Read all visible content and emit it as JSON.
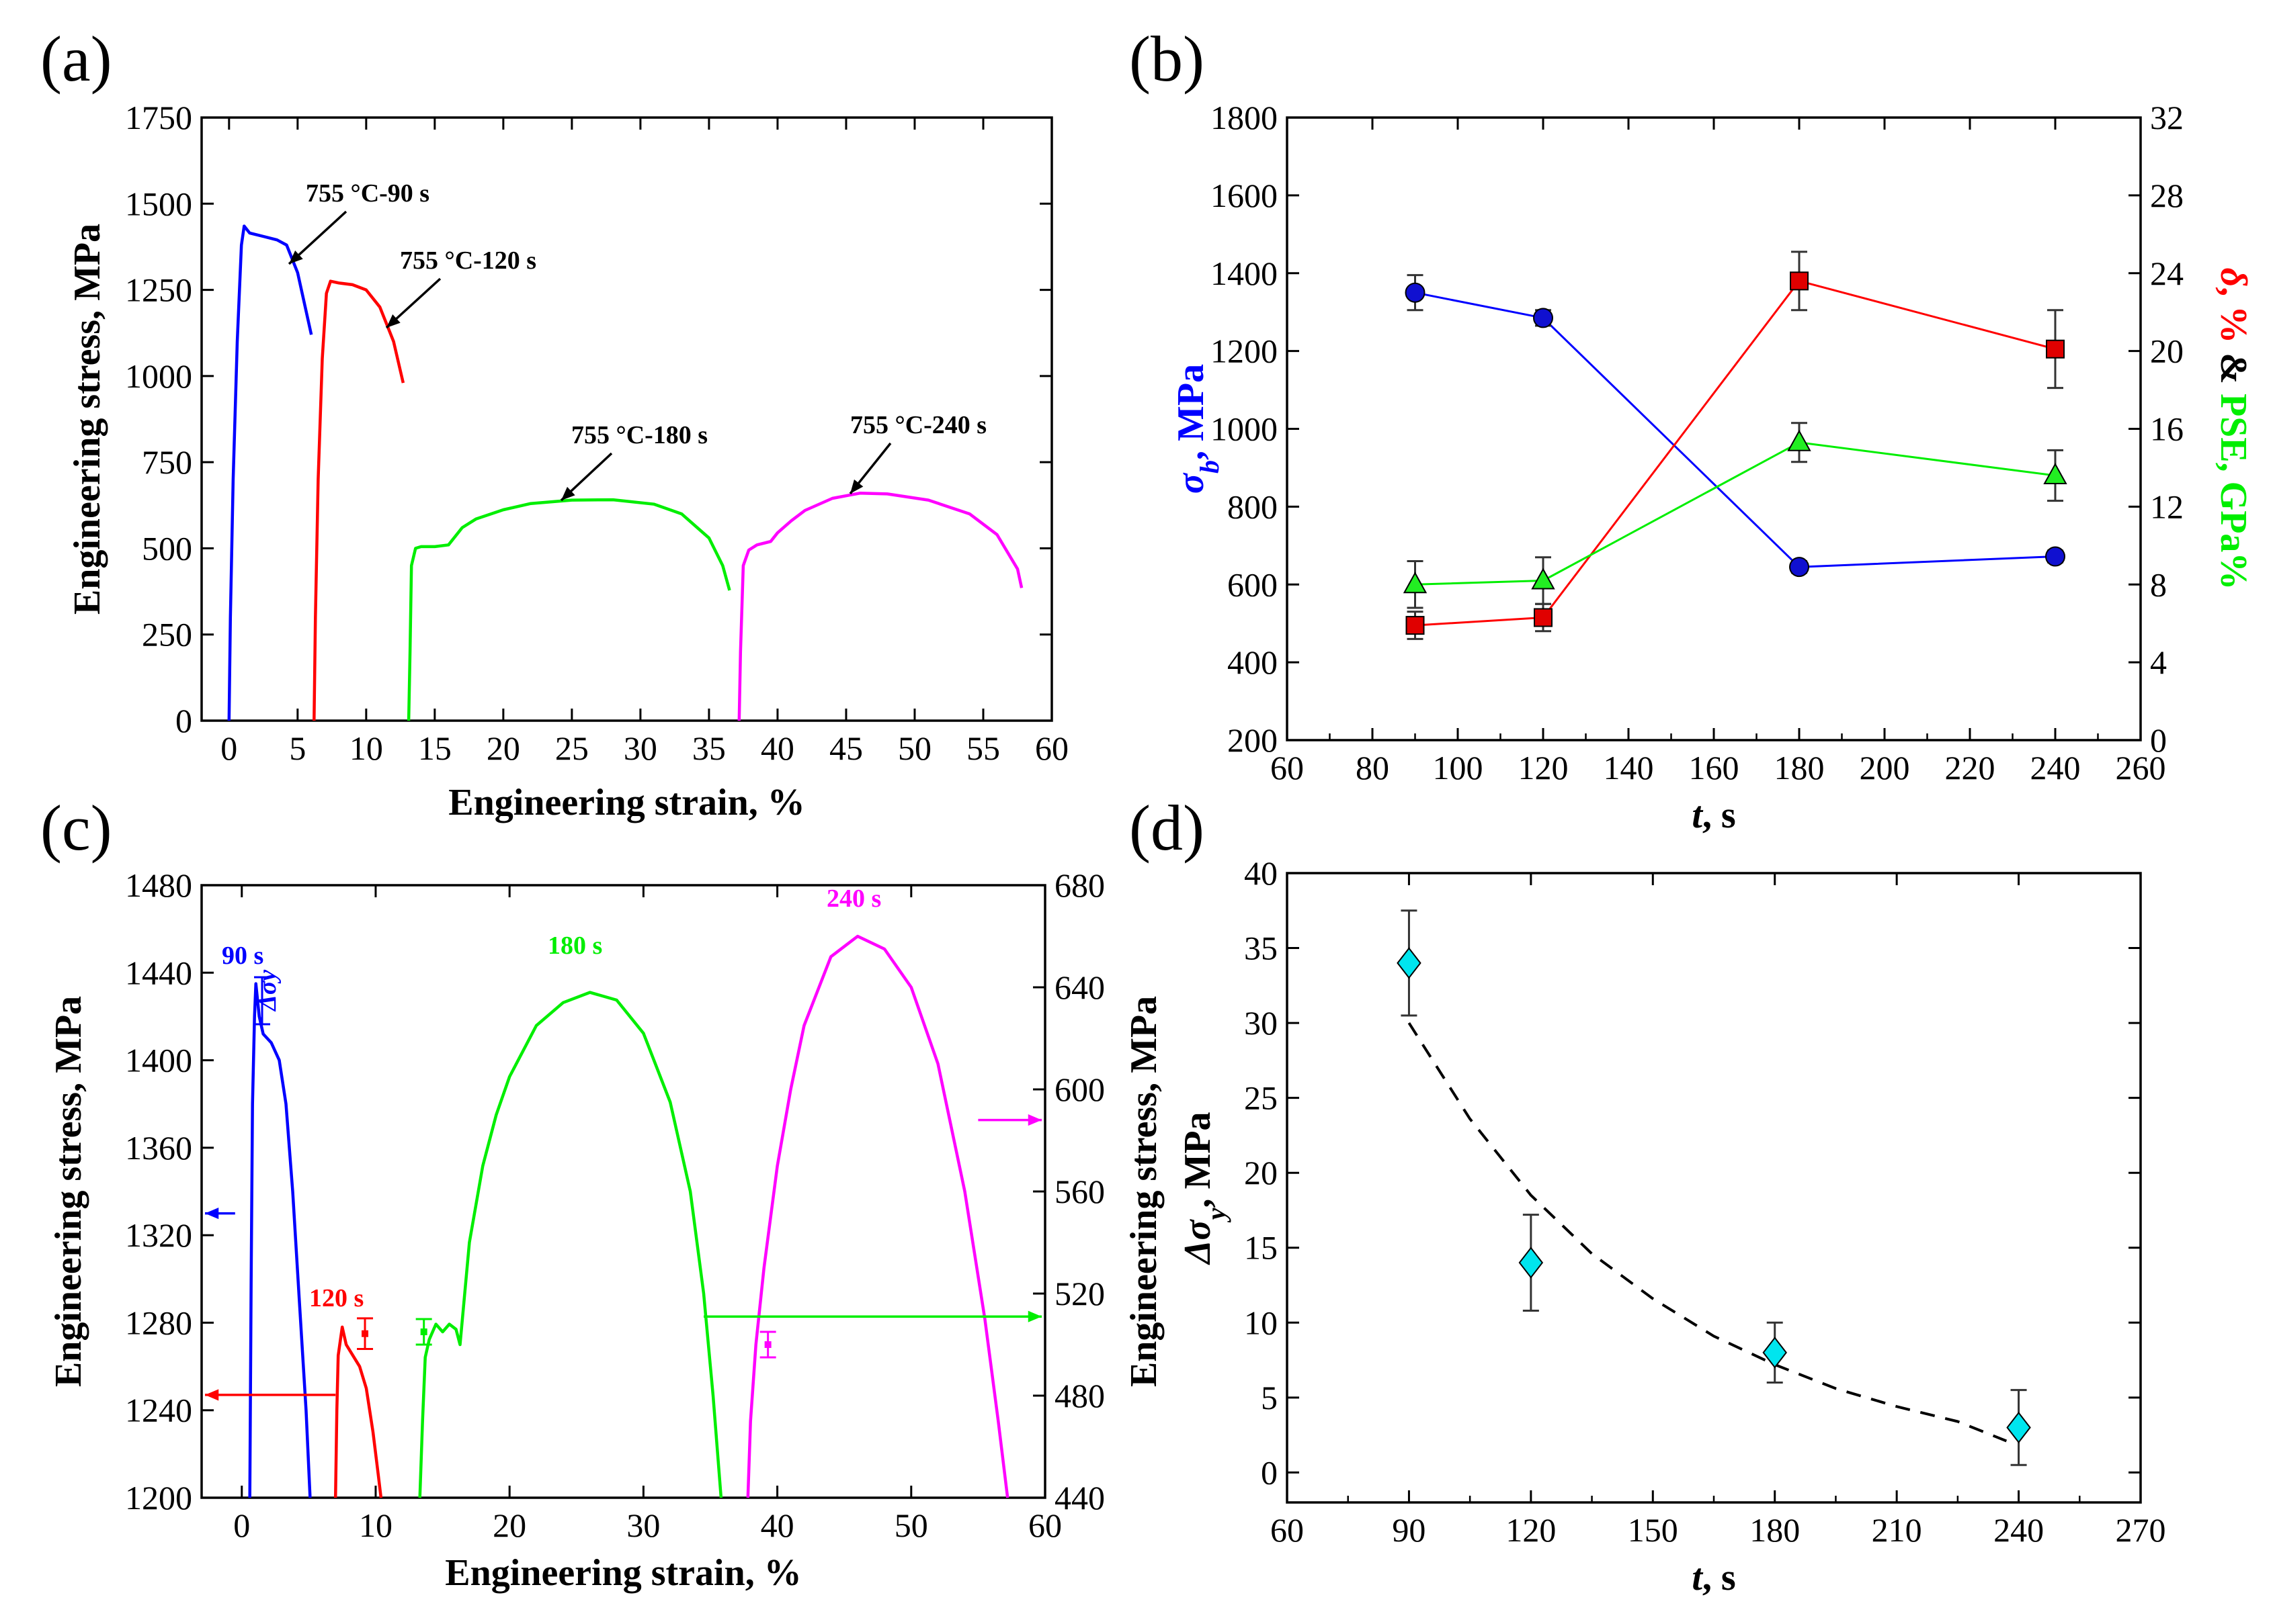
{
  "figure": {
    "panel_labels": [
      "(a)",
      "(b)",
      "(c)",
      "(d)"
    ]
  },
  "chart_data": [
    {
      "panel": "(a)",
      "type": "line",
      "xlabel": "Engineering strain, %",
      "ylabel": "Engineering stress, MPa",
      "xlim": [
        -2,
        60
      ],
      "ylim": [
        0,
        1750
      ],
      "xticks": [
        0,
        5,
        10,
        15,
        20,
        25,
        30,
        35,
        40,
        45,
        50,
        55,
        60
      ],
      "yticks": [
        0,
        250,
        500,
        750,
        1000,
        1250,
        1500,
        1750
      ],
      "series": [
        {
          "name": "755 °C-90 s",
          "color": "#0000ff",
          "points": [
            [
              0,
              0
            ],
            [
              0.1,
              300
            ],
            [
              0.3,
              700
            ],
            [
              0.6,
              1100
            ],
            [
              0.9,
              1380
            ],
            [
              1.1,
              1435
            ],
            [
              1.5,
              1415
            ],
            [
              2.5,
              1405
            ],
            [
              3.5,
              1395
            ],
            [
              4.2,
              1380
            ],
            [
              5.0,
              1300
            ],
            [
              6.0,
              1120
            ]
          ]
        },
        {
          "name": "755 °C-120 s",
          "color": "#ff0000",
          "points": [
            [
              6.2,
              0
            ],
            [
              6.3,
              300
            ],
            [
              6.5,
              700
            ],
            [
              6.8,
              1050
            ],
            [
              7.1,
              1240
            ],
            [
              7.4,
              1275
            ],
            [
              8.0,
              1270
            ],
            [
              9.0,
              1265
            ],
            [
              10.0,
              1250
            ],
            [
              11.0,
              1200
            ],
            [
              12.0,
              1100
            ],
            [
              12.7,
              980
            ]
          ]
        },
        {
          "name": "755 °C-180 s",
          "color": "#00ee00",
          "points": [
            [
              13.1,
              0
            ],
            [
              13.2,
              200
            ],
            [
              13.3,
              450
            ],
            [
              13.6,
              500
            ],
            [
              14.0,
              505
            ],
            [
              15.0,
              505
            ],
            [
              16.0,
              510
            ],
            [
              17.0,
              560
            ],
            [
              18.0,
              585
            ],
            [
              20.0,
              612
            ],
            [
              22.0,
              630
            ],
            [
              25.0,
              640
            ],
            [
              28.0,
              641
            ],
            [
              31.0,
              628
            ],
            [
              33.0,
              600
            ],
            [
              35.0,
              530
            ],
            [
              36.0,
              450
            ],
            [
              36.5,
              378
            ]
          ]
        },
        {
          "name": "755 °C-240 s",
          "color": "#ff00ff",
          "points": [
            [
              37.2,
              0
            ],
            [
              37.3,
              200
            ],
            [
              37.5,
              450
            ],
            [
              37.9,
              495
            ],
            [
              38.5,
              510
            ],
            [
              39.5,
              520
            ],
            [
              40.0,
              545
            ],
            [
              41.0,
              580
            ],
            [
              42.0,
              610
            ],
            [
              44.0,
              645
            ],
            [
              46.0,
              660
            ],
            [
              48.0,
              658
            ],
            [
              51.0,
              640
            ],
            [
              54.0,
              600
            ],
            [
              56.0,
              540
            ],
            [
              57.5,
              440
            ],
            [
              57.8,
              385
            ]
          ]
        }
      ],
      "annotations": [
        {
          "text": "755 °C-90 s",
          "at": [
            4.5,
            1350
          ]
        },
        {
          "text": "755 °C-120 s",
          "at": [
            11.5,
            1180
          ]
        },
        {
          "text": "755 °C-180 s",
          "at": [
            25.0,
            640
          ]
        },
        {
          "text": "755 °C-240 s",
          "at": [
            46.5,
            660
          ]
        }
      ]
    },
    {
      "panel": "(b)",
      "type": "line",
      "xlabel": "t, s",
      "ylabel_left": "σb, MPa",
      "ylabel_right": "δ, % & PSE, GPa%",
      "xlim": [
        60,
        260
      ],
      "ylim_left": [
        200,
        1800
      ],
      "ylim_right": [
        0,
        32
      ],
      "xticks": [
        60,
        80,
        100,
        120,
        140,
        160,
        180,
        200,
        220,
        240,
        260
      ],
      "yticks_left": [
        200,
        400,
        600,
        800,
        1000,
        1200,
        1400,
        1600,
        1800
      ],
      "yticks_right": [
        0,
        4,
        8,
        12,
        16,
        20,
        24,
        28,
        32
      ],
      "series": [
        {
          "name": "σb",
          "axis": "left",
          "color": "#0000ff",
          "marker": "circle",
          "x": [
            90,
            120,
            180,
            240
          ],
          "y": [
            1350,
            1285,
            645,
            672
          ],
          "err": [
            45,
            20,
            15,
            15
          ]
        },
        {
          "name": "δ",
          "axis": "right",
          "color": "#ff0000",
          "marker": "square",
          "x": [
            90,
            120,
            180,
            240
          ],
          "y": [
            5.9,
            6.3,
            23.6,
            20.1
          ],
          "err": [
            0.7,
            0.7,
            1.5,
            2.0
          ]
        },
        {
          "name": "PSE",
          "axis": "right",
          "color": "#00ee00",
          "marker": "triangle",
          "x": [
            90,
            120,
            180,
            240
          ],
          "y": [
            8.0,
            8.2,
            15.3,
            13.6
          ],
          "err": [
            1.2,
            1.2,
            1.0,
            1.3
          ]
        }
      ]
    },
    {
      "panel": "(c)",
      "type": "line",
      "xlabel": "Engineering strain, %",
      "ylabel_left": "Engineering stress, MPa",
      "ylabel_right": "Engineering stress, MPa",
      "xlim": [
        -3,
        60
      ],
      "ylim_left": [
        1200,
        1480
      ],
      "ylim_right": [
        440,
        680
      ],
      "xticks": [
        0,
        10,
        20,
        30,
        40,
        50,
        60
      ],
      "yticks_left": [
        1200,
        1240,
        1280,
        1320,
        1360,
        1400,
        1440,
        1480
      ],
      "yticks_right": [
        440,
        480,
        520,
        560,
        600,
        640,
        680
      ],
      "series": [
        {
          "name": "90 s",
          "axis": "left",
          "color": "#0000ff",
          "points": [
            [
              0.6,
              1200
            ],
            [
              0.7,
              1300
            ],
            [
              0.8,
              1380
            ],
            [
              0.95,
              1420
            ],
            [
              1.05,
              1435
            ],
            [
              1.3,
              1420
            ],
            [
              1.6,
              1412
            ],
            [
              2.2,
              1408
            ],
            [
              2.8,
              1400
            ],
            [
              3.3,
              1380
            ],
            [
              3.8,
              1340
            ],
            [
              4.3,
              1290
            ],
            [
              4.8,
              1240
            ],
            [
              5.1,
              1200
            ]
          ]
        },
        {
          "name": "120 s",
          "axis": "left",
          "color": "#ff0000",
          "points": [
            [
              7.0,
              1200
            ],
            [
              7.1,
              1240
            ],
            [
              7.2,
              1265
            ],
            [
              7.5,
              1278
            ],
            [
              7.8,
              1270
            ],
            [
              8.3,
              1265
            ],
            [
              8.8,
              1260
            ],
            [
              9.3,
              1250
            ],
            [
              9.8,
              1230
            ],
            [
              10.2,
              1210
            ],
            [
              10.4,
              1200
            ]
          ]
        },
        {
          "name": "180 s",
          "axis": "right",
          "color": "#00ee00",
          "points": [
            [
              13.3,
              440
            ],
            [
              13.5,
              470
            ],
            [
              13.7,
              495
            ],
            [
              14.0,
              502
            ],
            [
              14.5,
              508
            ],
            [
              15.0,
              505
            ],
            [
              15.5,
              508
            ],
            [
              16.0,
              506
            ],
            [
              16.3,
              500
            ],
            [
              17.0,
              540
            ],
            [
              18.0,
              570
            ],
            [
              19.0,
              590
            ],
            [
              20.0,
              605
            ],
            [
              22.0,
              625
            ],
            [
              24.0,
              634
            ],
            [
              26.0,
              638
            ],
            [
              28.0,
              635
            ],
            [
              30.0,
              622
            ],
            [
              32.0,
              595
            ],
            [
              33.5,
              560
            ],
            [
              34.5,
              520
            ],
            [
              35.2,
              480
            ],
            [
              35.8,
              440
            ]
          ]
        },
        {
          "name": "240 s",
          "axis": "right",
          "color": "#ff00ff",
          "points": [
            [
              37.8,
              440
            ],
            [
              38.0,
              470
            ],
            [
              38.4,
              500
            ],
            [
              39.0,
              530
            ],
            [
              40.0,
              570
            ],
            [
              41.0,
              600
            ],
            [
              42.0,
              625
            ],
            [
              44.0,
              652
            ],
            [
              46.0,
              660
            ],
            [
              48.0,
              655
            ],
            [
              50.0,
              640
            ],
            [
              52.0,
              610
            ],
            [
              54.0,
              560
            ],
            [
              55.5,
              510
            ],
            [
              56.5,
              470
            ],
            [
              57.2,
              440
            ]
          ]
        }
      ],
      "labels": [
        {
          "text": "90 s",
          "color": "#0000ff"
        },
        {
          "text": "120 s",
          "color": "#ff0000"
        },
        {
          "text": "180 s",
          "color": "#00ee00"
        },
        {
          "text": "240 s",
          "color": "#ff00ff"
        },
        {
          "text": "Δσy",
          "color": "#0000ff"
        }
      ],
      "axis_arrows": [
        {
          "series": "90 s",
          "points_to": "left axis",
          "y": 1330
        },
        {
          "series": "120 s",
          "points_to": "left axis",
          "y": 1247
        },
        {
          "series": "180 s",
          "points_to": "right axis",
          "y": 511
        },
        {
          "series": "240 s",
          "points_to": "right axis",
          "y": 588
        }
      ],
      "error_markers": [
        {
          "color": "#ff0000",
          "x": 9.2,
          "y_left": 1275,
          "err": 7
        },
        {
          "color": "#00ee00",
          "x": 13.6,
          "y_right": 505,
          "err": 5
        },
        {
          "color": "#ff00ff",
          "x": 39.3,
          "y_right": 500,
          "err": 5
        }
      ]
    },
    {
      "panel": "(d)",
      "type": "scatter",
      "xlabel": "t, s",
      "ylabel": "Δσy, MPa",
      "xlim": [
        60,
        270
      ],
      "ylim": [
        -2,
        40
      ],
      "xticks": [
        60,
        90,
        120,
        150,
        180,
        210,
        240,
        270
      ],
      "yticks": [
        0,
        5,
        10,
        15,
        20,
        25,
        30,
        35,
        40
      ],
      "series": [
        {
          "name": "Δσy",
          "color": "#00e5ee",
          "marker": "diamond",
          "x": [
            90,
            120,
            180,
            240
          ],
          "y": [
            34,
            14,
            8,
            3
          ],
          "err": [
            3.5,
            3.2,
            2.0,
            2.5
          ]
        }
      ],
      "fit": {
        "style": "dashed",
        "color": "#000000",
        "x": [
          90,
          105,
          120,
          135,
          150,
          165,
          180,
          195,
          210,
          225,
          237
        ],
        "y": [
          30.0,
          23.6,
          18.5,
          14.6,
          11.6,
          9.1,
          7.2,
          5.6,
          4.4,
          3.4,
          2.1
        ]
      }
    }
  ]
}
